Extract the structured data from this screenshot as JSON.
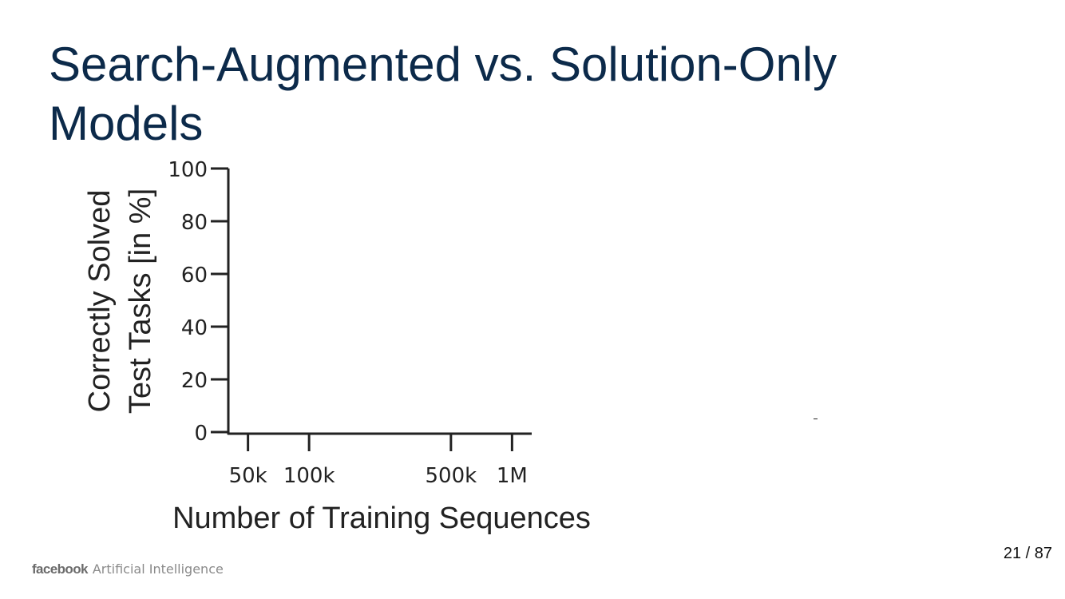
{
  "slide": {
    "title": "Search-Augmented vs. Solution-Only Models",
    "page_number": "21 / 87"
  },
  "footer": {
    "brand": "facebook",
    "product": "Artificial Intelligence"
  },
  "colors": {
    "title": "#0c2a4a",
    "axis": "#222222"
  },
  "chart_data": {
    "type": "line",
    "title": "",
    "xlabel": "Number of Training Sequences",
    "ylabel": [
      "Correctly Solved",
      "Test Tasks [in %]"
    ],
    "x_scale": "log",
    "x_ticks": [
      {
        "value": 50000,
        "label": "50k"
      },
      {
        "value": 100000,
        "label": "100k"
      },
      {
        "value": 500000,
        "label": "500k"
      },
      {
        "value": 1000000,
        "label": "1M"
      }
    ],
    "xlim": [
      40000,
      1250000
    ],
    "y_ticks": [
      0,
      20,
      40,
      60,
      80,
      100
    ],
    "ylim": [
      0,
      100
    ],
    "grid": false,
    "series": []
  }
}
